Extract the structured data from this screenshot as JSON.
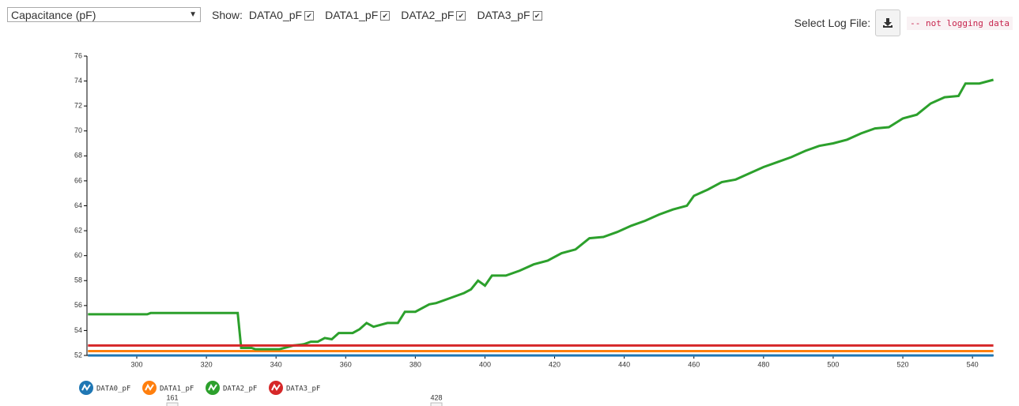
{
  "controls": {
    "measure": "Capacitance (pF)",
    "show_label": "Show:",
    "log_label": "Select Log File:",
    "log_status": "-- not logging data"
  },
  "range_slider": {
    "start": 161,
    "end": 428
  },
  "chart_data": {
    "type": "line",
    "xlim": [
      285.7,
      546.1
    ],
    "xticks": [
      300,
      320,
      340,
      360,
      380,
      400,
      420,
      440,
      460,
      480,
      500,
      520,
      540
    ],
    "ylim": [
      52,
      76
    ],
    "yticks": [
      52,
      54,
      56,
      58,
      60,
      62,
      64,
      66,
      68,
      70,
      72,
      74,
      76
    ],
    "series": [
      {
        "name": "DATA0_pF",
        "color": "#1f77b4",
        "x": [
          286,
          546
        ],
        "values": [
          52.0,
          52.0
        ]
      },
      {
        "name": "DATA1_pF",
        "color": "#ff7f0e",
        "x": [
          286,
          546
        ],
        "values": [
          52.35,
          52.35
        ]
      },
      {
        "name": "DATA2_pF",
        "color": "#2ca02c",
        "x": [
          286,
          303,
          304,
          329,
          330,
          333,
          334,
          341,
          345,
          348,
          350,
          352,
          354,
          356,
          358,
          362,
          364,
          366,
          368,
          372,
          375,
          377,
          380,
          384,
          386,
          390,
          394,
          396,
          398,
          400,
          402,
          406,
          410,
          414,
          418,
          422,
          426,
          430,
          434,
          438,
          442,
          446,
          450,
          454,
          458,
          460,
          464,
          468,
          472,
          476,
          480,
          484,
          488,
          492,
          496,
          500,
          504,
          508,
          512,
          516,
          520,
          524,
          528,
          532,
          536,
          538,
          542,
          546
        ],
        "values": [
          55.3,
          55.3,
          55.4,
          55.4,
          52.6,
          52.6,
          52.5,
          52.5,
          52.8,
          52.9,
          53.1,
          53.1,
          53.4,
          53.3,
          53.8,
          53.8,
          54.1,
          54.6,
          54.3,
          54.6,
          54.6,
          55.5,
          55.5,
          56.1,
          56.2,
          56.6,
          57.0,
          57.3,
          58.0,
          57.6,
          58.4,
          58.4,
          58.8,
          59.3,
          59.6,
          60.2,
          60.5,
          61.4,
          61.5,
          61.9,
          62.4,
          62.8,
          63.3,
          63.7,
          64.0,
          64.8,
          65.3,
          65.9,
          66.1,
          66.6,
          67.1,
          67.5,
          67.9,
          68.4,
          68.8,
          69.0,
          69.3,
          69.8,
          70.2,
          70.3,
          71.0,
          71.3,
          72.2,
          72.7,
          72.8,
          73.8,
          73.8,
          74.1
        ]
      },
      {
        "name": "DATA3_pF",
        "color": "#d62728",
        "x": [
          286,
          546
        ],
        "values": [
          52.8,
          52.8
        ]
      }
    ]
  }
}
